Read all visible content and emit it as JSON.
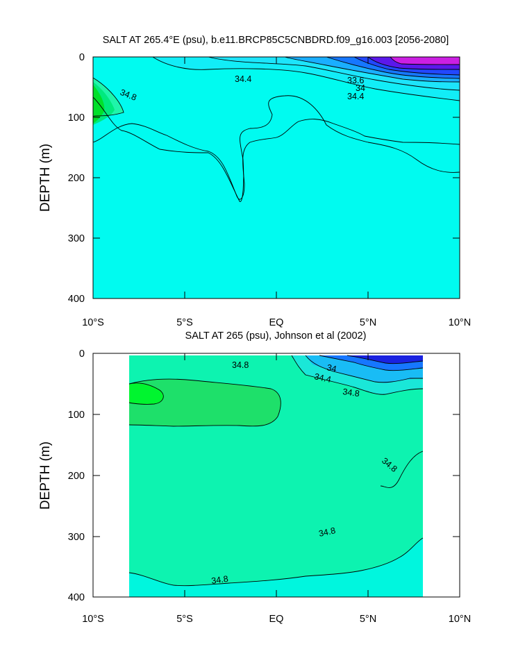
{
  "chart_data": [
    {
      "type": "contour",
      "title": "SALT AT 265.4°E (psu), b.e11.BRCP85C5CNBDRD.f09_g16.003 [2056-2080]",
      "xlabel": "",
      "ylabel": "DEPTH (m)",
      "xlim": [
        -10,
        10
      ],
      "ylim": [
        400,
        0
      ],
      "y_inverted": true,
      "x_ticks": [
        "10°S",
        "5°S",
        "EQ",
        "5°N",
        "10°N"
      ],
      "y_ticks": [
        "0",
        "100",
        "200",
        "300",
        "400"
      ],
      "contour_labels": [
        "34.8",
        "34.4",
        "33.6",
        "34",
        "34.4"
      ],
      "fill_colors": {
        "background": "#00fbf0",
        "saltier": "#1ff5aa",
        "saltiest": "#00e02a",
        "fresh": "#27dcff",
        "freshest": "#cc1fe3"
      }
    },
    {
      "type": "contour",
      "title": "SALT AT 265 (psu), Johnson et al (2002)",
      "xlabel": "",
      "ylabel": "DEPTH (m)",
      "xlim": [
        -10,
        10
      ],
      "ylim": [
        400,
        0
      ],
      "y_inverted": true,
      "data_xrange": [
        -8,
        8
      ],
      "x_ticks": [
        "10°S",
        "5°S",
        "EQ",
        "5°N",
        "10°N"
      ],
      "y_ticks": [
        "0",
        "100",
        "200",
        "300",
        "400"
      ],
      "contour_labels": [
        "34.8",
        "34.4",
        "34",
        "34.8",
        "34.8",
        "34.8",
        "34.8"
      ],
      "fill_colors": {
        "background": "#00f6de",
        "saltier": "#0df3b0",
        "saltiest": "#1ee06a",
        "core": "#00f52f",
        "freshest": "#1a22e0"
      }
    }
  ]
}
